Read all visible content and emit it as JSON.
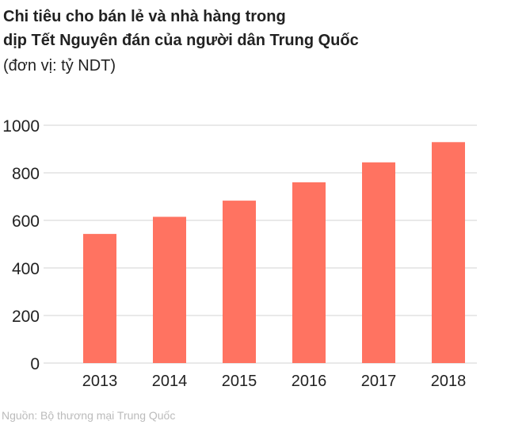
{
  "chart_data": {
    "type": "bar",
    "title": "Chi tiêu cho bán lẻ và nhà hàng trong dịp Tết Nguyên đán của người dân Trung Quốc",
    "title_lines": [
      "Chi tiêu cho bán lẻ và nhà hàng trong",
      "dịp Tết Nguyên đán của người dân Trung Quốc"
    ],
    "subtitle": "(đơn vị: tỷ NDT)",
    "categories": [
      "2013",
      "2014",
      "2015",
      "2016",
      "2017",
      "2018"
    ],
    "values": [
      543,
      615,
      683,
      760,
      844,
      929
    ],
    "ylim": [
      0,
      1000
    ],
    "yticks": [
      "0",
      "200",
      "400",
      "600",
      "800",
      "1000"
    ],
    "grid": true,
    "bar_color": "#ff7361",
    "source": "Nguồn: Bộ thương mại Trung Quốc"
  }
}
